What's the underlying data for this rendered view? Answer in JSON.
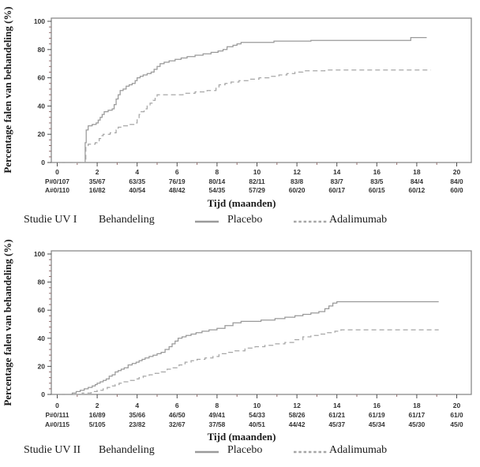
{
  "colors": {
    "placebo_line": "#999999",
    "adalimumab_line": "#a6a6a6",
    "frame": "#8a8a8a",
    "major_tick": "#4d4d4d",
    "minor_tick": "#8f6b6b",
    "text": "#333333"
  },
  "chart_data": [
    {
      "type": "line",
      "subtype": "kaplan-meier-step",
      "study_label": "Studie UV I",
      "ylabel": "Percentage falen van behandeling (%)",
      "xlabel": "Tijd (maanden)",
      "ylim": [
        0,
        100
      ],
      "xlim": [
        0,
        20
      ],
      "grid": false,
      "legend_position": "bottom",
      "x_ticks": [
        0,
        2,
        4,
        6,
        8,
        10,
        12,
        14,
        16,
        18,
        20
      ],
      "y_ticks": [
        0,
        20,
        40,
        60,
        80,
        100
      ],
      "y_minor_step": 4,
      "x_minor_step": 1,
      "legend": {
        "treatment_heading": "Behandeling",
        "placebo_label": "Placebo",
        "adalimumab_label": "Adalimumab"
      },
      "series": [
        {
          "name": "Placebo",
          "style": "solid",
          "points": [
            [
              0,
              0
            ],
            [
              1.35,
              0
            ],
            [
              1.4,
              14
            ],
            [
              1.45,
              23
            ],
            [
              1.55,
              26
            ],
            [
              1.75,
              27
            ],
            [
              1.95,
              28
            ],
            [
              2.05,
              30
            ],
            [
              2.15,
              32
            ],
            [
              2.25,
              34
            ],
            [
              2.35,
              36
            ],
            [
              2.55,
              37
            ],
            [
              2.75,
              38
            ],
            [
              2.85,
              41
            ],
            [
              2.95,
              45
            ],
            [
              3.05,
              48
            ],
            [
              3.15,
              51
            ],
            [
              3.3,
              52
            ],
            [
              3.45,
              54
            ],
            [
              3.6,
              55
            ],
            [
              3.75,
              56
            ],
            [
              3.9,
              58
            ],
            [
              4.0,
              60
            ],
            [
              4.15,
              61
            ],
            [
              4.3,
              62
            ],
            [
              4.5,
              63
            ],
            [
              4.7,
              64
            ],
            [
              4.85,
              66
            ],
            [
              5.0,
              68
            ],
            [
              5.15,
              70
            ],
            [
              5.35,
              71
            ],
            [
              5.6,
              72
            ],
            [
              5.9,
              73
            ],
            [
              6.2,
              74
            ],
            [
              6.5,
              75
            ],
            [
              6.9,
              76
            ],
            [
              7.3,
              77
            ],
            [
              7.7,
              78
            ],
            [
              8.05,
              79
            ],
            [
              8.3,
              80
            ],
            [
              8.5,
              82
            ],
            [
              8.8,
              83
            ],
            [
              9.0,
              84
            ],
            [
              9.2,
              85
            ],
            [
              10.85,
              86
            ],
            [
              12.7,
              86.5
            ],
            [
              17.7,
              88.5
            ],
            [
              18.5,
              88.5
            ]
          ]
        },
        {
          "name": "Adalimumab",
          "style": "dashed",
          "points": [
            [
              0,
              0
            ],
            [
              1.38,
              0
            ],
            [
              1.43,
              12
            ],
            [
              1.55,
              13
            ],
            [
              1.9,
              14
            ],
            [
              2.0,
              15
            ],
            [
              2.1,
              17
            ],
            [
              2.2,
              19
            ],
            [
              2.3,
              20
            ],
            [
              2.65,
              21
            ],
            [
              2.95,
              23
            ],
            [
              3.05,
              25
            ],
            [
              3.25,
              26
            ],
            [
              3.55,
              27
            ],
            [
              3.9,
              28
            ],
            [
              4.0,
              31
            ],
            [
              4.1,
              34
            ],
            [
              4.2,
              36
            ],
            [
              4.35,
              38
            ],
            [
              4.5,
              40
            ],
            [
              4.65,
              42
            ],
            [
              4.8,
              44
            ],
            [
              4.9,
              46
            ],
            [
              5.0,
              48
            ],
            [
              6.1,
              48
            ],
            [
              6.3,
              49
            ],
            [
              6.9,
              50
            ],
            [
              7.5,
              51
            ],
            [
              7.95,
              53
            ],
            [
              8.1,
              55
            ],
            [
              8.4,
              56
            ],
            [
              8.7,
              57
            ],
            [
              9.1,
              58
            ],
            [
              9.6,
              59
            ],
            [
              10.1,
              60
            ],
            [
              10.6,
              61
            ],
            [
              11.1,
              62
            ],
            [
              11.5,
              63
            ],
            [
              11.9,
              64
            ],
            [
              12.3,
              65
            ],
            [
              13.4,
              65.5
            ],
            [
              18.7,
              65.5
            ]
          ]
        }
      ],
      "at_risk": {
        "x": [
          0,
          2,
          4,
          6,
          8,
          10,
          12,
          14,
          16,
          18,
          20
        ],
        "placebo": [
          "P#0/107",
          "35/67",
          "63/35",
          "76/19",
          "80/14",
          "82/11",
          "83/8",
          "83/7",
          "83/5",
          "84/4",
          "84/0"
        ],
        "adalimumab": [
          "A#0/110",
          "16/82",
          "40/54",
          "48/42",
          "54/35",
          "57/29",
          "60/20",
          "60/17",
          "60/15",
          "60/12",
          "60/0"
        ]
      }
    },
    {
      "type": "line",
      "subtype": "kaplan-meier-step",
      "study_label": "Studie UV II",
      "ylabel": "Percentage falen van behandeling (%)",
      "xlabel": "Tijd (maanden)",
      "ylim": [
        0,
        100
      ],
      "xlim": [
        0,
        20
      ],
      "grid": false,
      "legend_position": "bottom",
      "x_ticks": [
        0,
        2,
        4,
        6,
        8,
        10,
        12,
        14,
        16,
        18,
        20
      ],
      "y_ticks": [
        0,
        20,
        40,
        60,
        80,
        100
      ],
      "y_minor_step": 4,
      "x_minor_step": 1,
      "legend": {
        "treatment_heading": "Behandeling",
        "placebo_label": "Placebo",
        "adalimumab_label": "Adalimumab"
      },
      "series": [
        {
          "name": "Placebo",
          "style": "solid",
          "points": [
            [
              0,
              0
            ],
            [
              0.6,
              0
            ],
            [
              0.75,
              1
            ],
            [
              0.95,
              2
            ],
            [
              1.15,
              3
            ],
            [
              1.35,
              4
            ],
            [
              1.55,
              5
            ],
            [
              1.75,
              6
            ],
            [
              1.9,
              7
            ],
            [
              2.0,
              8
            ],
            [
              2.15,
              9
            ],
            [
              2.3,
              10
            ],
            [
              2.45,
              11
            ],
            [
              2.6,
              13
            ],
            [
              2.75,
              14
            ],
            [
              2.9,
              16
            ],
            [
              3.05,
              17
            ],
            [
              3.2,
              18
            ],
            [
              3.35,
              19
            ],
            [
              3.55,
              21
            ],
            [
              3.75,
              22
            ],
            [
              3.95,
              23
            ],
            [
              4.1,
              24
            ],
            [
              4.25,
              25
            ],
            [
              4.4,
              26
            ],
            [
              4.6,
              27
            ],
            [
              4.8,
              28
            ],
            [
              5.0,
              29
            ],
            [
              5.2,
              30
            ],
            [
              5.4,
              32
            ],
            [
              5.6,
              34
            ],
            [
              5.75,
              36
            ],
            [
              5.9,
              38
            ],
            [
              6.05,
              40
            ],
            [
              6.25,
              41
            ],
            [
              6.45,
              42
            ],
            [
              6.7,
              43
            ],
            [
              6.95,
              44
            ],
            [
              7.25,
              45
            ],
            [
              7.6,
              46
            ],
            [
              8.0,
              47
            ],
            [
              8.4,
              49
            ],
            [
              8.8,
              51
            ],
            [
              9.2,
              52
            ],
            [
              10.2,
              53
            ],
            [
              10.9,
              54
            ],
            [
              11.4,
              55
            ],
            [
              11.9,
              56
            ],
            [
              12.3,
              57
            ],
            [
              12.7,
              58
            ],
            [
              13.1,
              59
            ],
            [
              13.4,
              61
            ],
            [
              13.6,
              63
            ],
            [
              13.8,
              65
            ],
            [
              14.0,
              66
            ],
            [
              19.1,
              66
            ]
          ]
        },
        {
          "name": "Adalimumab",
          "style": "dashed",
          "points": [
            [
              0,
              0
            ],
            [
              1.1,
              0
            ],
            [
              1.25,
              1
            ],
            [
              1.7,
              2
            ],
            [
              2.0,
              3
            ],
            [
              2.3,
              4
            ],
            [
              2.5,
              5
            ],
            [
              2.7,
              6
            ],
            [
              2.9,
              7
            ],
            [
              3.1,
              8
            ],
            [
              3.3,
              9
            ],
            [
              3.6,
              10
            ],
            [
              3.9,
              11
            ],
            [
              4.1,
              12
            ],
            [
              4.3,
              13
            ],
            [
              4.6,
              14
            ],
            [
              4.9,
              15
            ],
            [
              5.2,
              16
            ],
            [
              5.5,
              18
            ],
            [
              5.8,
              19
            ],
            [
              6.1,
              21
            ],
            [
              6.4,
              23
            ],
            [
              6.7,
              24
            ],
            [
              7.0,
              25
            ],
            [
              7.4,
              26
            ],
            [
              7.8,
              27
            ],
            [
              8.1,
              29
            ],
            [
              8.5,
              30
            ],
            [
              8.9,
              31
            ],
            [
              9.4,
              33
            ],
            [
              9.9,
              34
            ],
            [
              10.4,
              35
            ],
            [
              10.9,
              36
            ],
            [
              11.4,
              37
            ],
            [
              11.9,
              39
            ],
            [
              12.3,
              41
            ],
            [
              12.7,
              42
            ],
            [
              13.1,
              43
            ],
            [
              13.5,
              44
            ],
            [
              13.9,
              45
            ],
            [
              14.2,
              46
            ],
            [
              19.1,
              46
            ]
          ]
        }
      ],
      "at_risk": {
        "x": [
          0,
          2,
          4,
          6,
          8,
          10,
          12,
          14,
          16,
          18,
          20
        ],
        "placebo": [
          "P#0/111",
          "16/89",
          "35/66",
          "46/50",
          "49/41",
          "54/33",
          "58/26",
          "61/21",
          "61/19",
          "61/17",
          "61/0"
        ],
        "adalimumab": [
          "A#0/115",
          "5/105",
          "23/82",
          "32/67",
          "37/58",
          "40/51",
          "44/42",
          "45/37",
          "45/34",
          "45/30",
          "45/0"
        ]
      }
    }
  ]
}
